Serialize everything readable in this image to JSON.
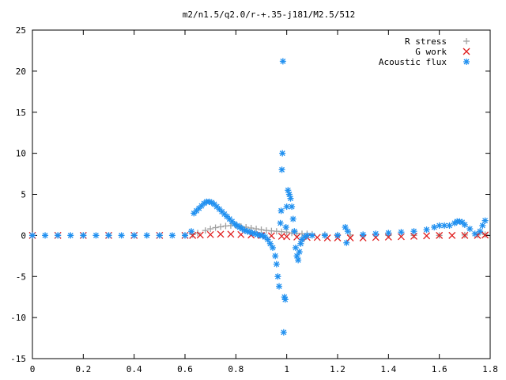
{
  "chart_data": {
    "type": "scatter",
    "title": "m2/n1.5/q2.0/r-+.35-j181/M2.5/512",
    "xlabel": "",
    "ylabel": "",
    "xlim": [
      0,
      1.8
    ],
    "ylim": [
      -15,
      25
    ],
    "x_ticks": [
      "0",
      "0.2",
      "0.4",
      "0.6",
      "0.8",
      "1",
      "1.2",
      "1.4",
      "1.6",
      "1.8"
    ],
    "y_ticks": [
      "25",
      "20",
      "15",
      "10",
      "5",
      "0",
      "-5",
      "-10",
      "-15"
    ],
    "grid": false,
    "legend_position": "top-right",
    "series": [
      {
        "name": "R stress",
        "marker": "plus",
        "color": "#a0a0a0",
        "points": [
          [
            0.0,
            0.0
          ],
          [
            0.1,
            0.0
          ],
          [
            0.2,
            0.0
          ],
          [
            0.3,
            0.0
          ],
          [
            0.4,
            0.0
          ],
          [
            0.5,
            0.0
          ],
          [
            0.6,
            0.0
          ],
          [
            0.63,
            0.1
          ],
          [
            0.65,
            0.3
          ],
          [
            0.68,
            0.6
          ],
          [
            0.7,
            0.8
          ],
          [
            0.72,
            0.95
          ],
          [
            0.74,
            1.05
          ],
          [
            0.76,
            1.15
          ],
          [
            0.78,
            1.2
          ],
          [
            0.8,
            1.2
          ],
          [
            0.82,
            1.1
          ],
          [
            0.84,
            1.0
          ],
          [
            0.86,
            0.9
          ],
          [
            0.88,
            0.8
          ],
          [
            0.9,
            0.7
          ],
          [
            0.92,
            0.6
          ],
          [
            0.94,
            0.55
          ],
          [
            0.96,
            0.5
          ],
          [
            0.98,
            0.45
          ],
          [
            1.0,
            0.4
          ],
          [
            1.02,
            0.3
          ],
          [
            1.04,
            0.25
          ],
          [
            1.06,
            0.2
          ],
          [
            1.08,
            0.2
          ],
          [
            1.1,
            0.15
          ],
          [
            1.15,
            0.1
          ],
          [
            1.2,
            0.05
          ],
          [
            1.25,
            0.05
          ],
          [
            1.3,
            0.05
          ],
          [
            1.4,
            0.0
          ],
          [
            1.5,
            0.0
          ],
          [
            1.6,
            0.0
          ],
          [
            1.7,
            0.05
          ],
          [
            1.75,
            0.05
          ],
          [
            1.78,
            0.1
          ]
        ]
      },
      {
        "name": "G work",
        "marker": "cross",
        "color": "#e02020",
        "points": [
          [
            0.0,
            0.0
          ],
          [
            0.1,
            0.0
          ],
          [
            0.2,
            0.0
          ],
          [
            0.3,
            0.0
          ],
          [
            0.4,
            0.0
          ],
          [
            0.5,
            0.0
          ],
          [
            0.6,
            0.0
          ],
          [
            0.63,
            0.0
          ],
          [
            0.66,
            0.05
          ],
          [
            0.7,
            0.1
          ],
          [
            0.74,
            0.15
          ],
          [
            0.78,
            0.15
          ],
          [
            0.82,
            0.1
          ],
          [
            0.86,
            0.05
          ],
          [
            0.9,
            0.0
          ],
          [
            0.94,
            -0.05
          ],
          [
            0.98,
            -0.1
          ],
          [
            1.0,
            -0.15
          ],
          [
            1.04,
            -0.2
          ],
          [
            1.08,
            -0.25
          ],
          [
            1.12,
            -0.25
          ],
          [
            1.16,
            -0.3
          ],
          [
            1.2,
            -0.3
          ],
          [
            1.25,
            -0.3
          ],
          [
            1.3,
            -0.3
          ],
          [
            1.35,
            -0.25
          ],
          [
            1.4,
            -0.2
          ],
          [
            1.45,
            -0.15
          ],
          [
            1.5,
            -0.1
          ],
          [
            1.55,
            -0.05
          ],
          [
            1.6,
            0.0
          ],
          [
            1.65,
            0.0
          ],
          [
            1.7,
            0.0
          ],
          [
            1.75,
            0.0
          ],
          [
            1.78,
            0.05
          ]
        ]
      },
      {
        "name": "Acoustic flux",
        "marker": "star",
        "color": "#2090f0",
        "points": [
          [
            0.0,
            0.0
          ],
          [
            0.05,
            0.0
          ],
          [
            0.1,
            0.0
          ],
          [
            0.15,
            0.0
          ],
          [
            0.2,
            0.0
          ],
          [
            0.25,
            0.0
          ],
          [
            0.3,
            0.0
          ],
          [
            0.35,
            0.0
          ],
          [
            0.4,
            0.0
          ],
          [
            0.45,
            0.0
          ],
          [
            0.5,
            0.0
          ],
          [
            0.55,
            0.0
          ],
          [
            0.6,
            0.0
          ],
          [
            0.625,
            0.5
          ],
          [
            0.635,
            2.7
          ],
          [
            0.645,
            3.0
          ],
          [
            0.655,
            3.3
          ],
          [
            0.665,
            3.6
          ],
          [
            0.675,
            3.9
          ],
          [
            0.685,
            4.1
          ],
          [
            0.695,
            4.1
          ],
          [
            0.705,
            4.0
          ],
          [
            0.715,
            3.8
          ],
          [
            0.725,
            3.5
          ],
          [
            0.735,
            3.2
          ],
          [
            0.745,
            2.9
          ],
          [
            0.755,
            2.6
          ],
          [
            0.765,
            2.3
          ],
          [
            0.775,
            2.0
          ],
          [
            0.785,
            1.7
          ],
          [
            0.795,
            1.4
          ],
          [
            0.805,
            1.2
          ],
          [
            0.815,
            1.0
          ],
          [
            0.825,
            0.8
          ],
          [
            0.835,
            0.6
          ],
          [
            0.845,
            0.5
          ],
          [
            0.855,
            0.4
          ],
          [
            0.865,
            0.3
          ],
          [
            0.875,
            0.2
          ],
          [
            0.885,
            0.1
          ],
          [
            0.895,
            0.0
          ],
          [
            0.905,
            0.0
          ],
          [
            0.915,
            -0.2
          ],
          [
            0.925,
            -0.5
          ],
          [
            0.935,
            -1.0
          ],
          [
            0.945,
            -1.5
          ],
          [
            0.955,
            -2.5
          ],
          [
            0.96,
            -3.5
          ],
          [
            0.965,
            -5.0
          ],
          [
            0.97,
            -6.2
          ],
          [
            0.975,
            1.5
          ],
          [
            0.978,
            3.0
          ],
          [
            0.981,
            8.0
          ],
          [
            0.983,
            10.0
          ],
          [
            0.985,
            21.2
          ],
          [
            0.988,
            -11.8
          ],
          [
            0.991,
            -7.5
          ],
          [
            0.994,
            -7.8
          ],
          [
            0.997,
            1.0
          ],
          [
            1.0,
            3.5
          ],
          [
            1.005,
            5.5
          ],
          [
            1.01,
            5.0
          ],
          [
            1.015,
            4.5
          ],
          [
            1.02,
            3.5
          ],
          [
            1.025,
            2.0
          ],
          [
            1.03,
            0.5
          ],
          [
            1.035,
            -1.5
          ],
          [
            1.04,
            -2.5
          ],
          [
            1.045,
            -3.0
          ],
          [
            1.05,
            -2.0
          ],
          [
            1.055,
            -1.0
          ],
          [
            1.06,
            -0.5
          ],
          [
            1.07,
            -0.2
          ],
          [
            1.08,
            0.0
          ],
          [
            1.1,
            0.0
          ],
          [
            1.15,
            0.0
          ],
          [
            1.2,
            0.0
          ],
          [
            1.23,
            1.0
          ],
          [
            1.235,
            -0.9
          ],
          [
            1.24,
            0.5
          ],
          [
            1.3,
            0.1
          ],
          [
            1.35,
            0.2
          ],
          [
            1.4,
            0.3
          ],
          [
            1.45,
            0.4
          ],
          [
            1.5,
            0.5
          ],
          [
            1.55,
            0.7
          ],
          [
            1.58,
            1.0
          ],
          [
            1.6,
            1.2
          ],
          [
            1.62,
            1.2
          ],
          [
            1.64,
            1.2
          ],
          [
            1.66,
            1.5
          ],
          [
            1.67,
            1.7
          ],
          [
            1.68,
            1.7
          ],
          [
            1.69,
            1.6
          ],
          [
            1.7,
            1.3
          ],
          [
            1.72,
            0.8
          ],
          [
            1.74,
            0.2
          ],
          [
            1.76,
            0.5
          ],
          [
            1.77,
            1.2
          ],
          [
            1.78,
            1.8
          ]
        ]
      }
    ]
  }
}
